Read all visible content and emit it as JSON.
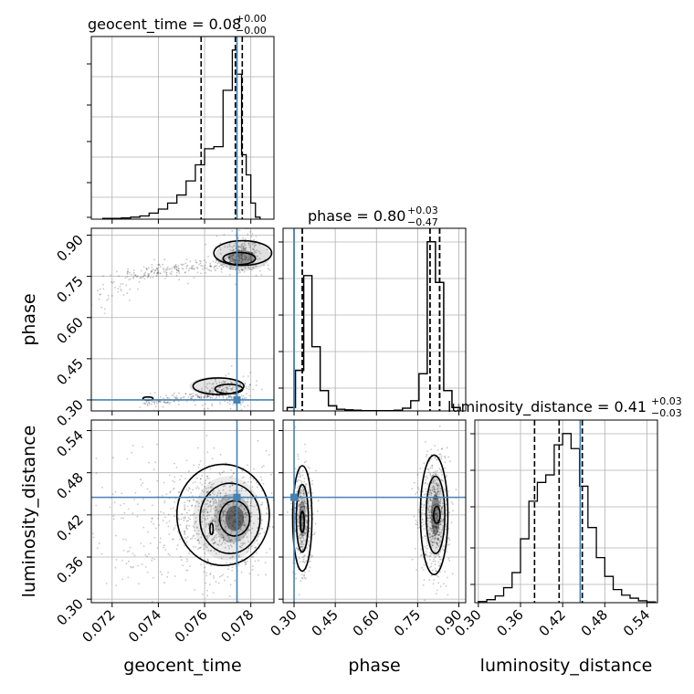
{
  "truth_color": "#4682b4",
  "chart_data": [
    {
      "type": "histogram",
      "panel": "geocent_time marginal",
      "title": {
        "base": "geocent_time = 0.08",
        "sup": "+0.00",
        "sub": "−0.00"
      },
      "x_ticks": [
        "0.072",
        "0.074",
        "0.076",
        "0.078"
      ],
      "xlim": [
        0.0711,
        0.079
      ],
      "bin_edges": [
        0.0716,
        0.072,
        0.0724,
        0.0728,
        0.0732,
        0.0736,
        0.074,
        0.0744,
        0.0748,
        0.0752,
        0.0756,
        0.076,
        0.0764,
        0.0768,
        0.0772,
        0.0774,
        0.0776,
        0.0778,
        0.078,
        0.0782,
        0.0784
      ],
      "counts": [
        2,
        2,
        3,
        5,
        8,
        15,
        25,
        40,
        60,
        95,
        135,
        175,
        180,
        320,
        420,
        360,
        160,
        110,
        40,
        5
      ],
      "quantiles": [
        0.07585,
        0.07733,
        0.07763
      ],
      "truth": 0.0774
    },
    {
      "type": "histogram",
      "panel": "phase marginal",
      "title": {
        "base": "phase = 0.80",
        "sup": "+0.03",
        "sub": "−0.47"
      },
      "x_ticks": [
        "0.30",
        "0.45",
        "0.60",
        "0.75",
        "0.90"
      ],
      "xlim": [
        0.26,
        0.925
      ],
      "bin_edges": [
        0.275,
        0.305,
        0.335,
        0.365,
        0.395,
        0.425,
        0.455,
        0.485,
        0.515,
        0.545,
        0.575,
        0.605,
        0.635,
        0.665,
        0.695,
        0.725,
        0.755,
        0.785,
        0.815,
        0.845,
        0.875,
        0.905
      ],
      "counts": [
        10,
        120,
        400,
        190,
        60,
        15,
        5,
        3,
        2,
        1,
        1,
        1,
        1,
        2,
        8,
        30,
        110,
        500,
        380,
        60,
        10
      ],
      "quantiles": [
        0.33,
        0.795,
        0.83
      ],
      "truth": 0.3
    },
    {
      "type": "histogram",
      "panel": "luminosity_distance marginal",
      "title": {
        "base": "luminosity_distance = 0.41",
        "sup": "+0.03",
        "sub": "−0.03"
      },
      "x_ticks": [
        "0.30",
        "0.36",
        "0.42",
        "0.48",
        "0.54"
      ],
      "xlim": [
        0.295,
        0.555
      ],
      "bin_edges": [
        0.3,
        0.312,
        0.324,
        0.336,
        0.348,
        0.36,
        0.372,
        0.384,
        0.396,
        0.408,
        0.42,
        0.432,
        0.444,
        0.456,
        0.468,
        0.48,
        0.492,
        0.504,
        0.516,
        0.528,
        0.54,
        0.552
      ],
      "counts": [
        3,
        8,
        18,
        40,
        80,
        170,
        270,
        320,
        340,
        420,
        450,
        410,
        310,
        200,
        120,
        70,
        35,
        20,
        12,
        5,
        2
      ],
      "quantiles": [
        0.38,
        0.415,
        0.448
      ],
      "truth": 0.445
    },
    {
      "type": "scatter",
      "panel": "phase vs geocent_time",
      "xlabel": "",
      "ylabel": "phase",
      "y_ticks": [
        "0.30",
        "0.45",
        "0.60",
        "0.75",
        "0.90"
      ],
      "xlim": [
        0.0711,
        0.079
      ],
      "ylim": [
        0.26,
        0.925
      ],
      "truth": [
        0.0774,
        0.3
      ]
    },
    {
      "type": "scatter",
      "panel": "luminosity_distance vs geocent_time",
      "xlabel": "geocent_time",
      "ylabel": "luminosity_distance",
      "x_ticks": [
        "0.072",
        "0.074",
        "0.076",
        "0.078"
      ],
      "y_ticks": [
        "0.30",
        "0.36",
        "0.42",
        "0.48",
        "0.54"
      ],
      "xlim": [
        0.0711,
        0.079
      ],
      "ylim": [
        0.295,
        0.555
      ],
      "truth": [
        0.0774,
        0.445
      ]
    },
    {
      "type": "scatter",
      "panel": "luminosity_distance vs phase",
      "xlabel": "phase",
      "x_ticks": [
        "0.30",
        "0.45",
        "0.60",
        "0.75",
        "0.90"
      ],
      "xlim": [
        0.26,
        0.925
      ],
      "ylim": [
        0.295,
        0.555
      ],
      "truth": [
        0.3,
        0.445
      ]
    },
    {
      "type": "axis-label",
      "xlabel": "luminosity_distance"
    }
  ]
}
